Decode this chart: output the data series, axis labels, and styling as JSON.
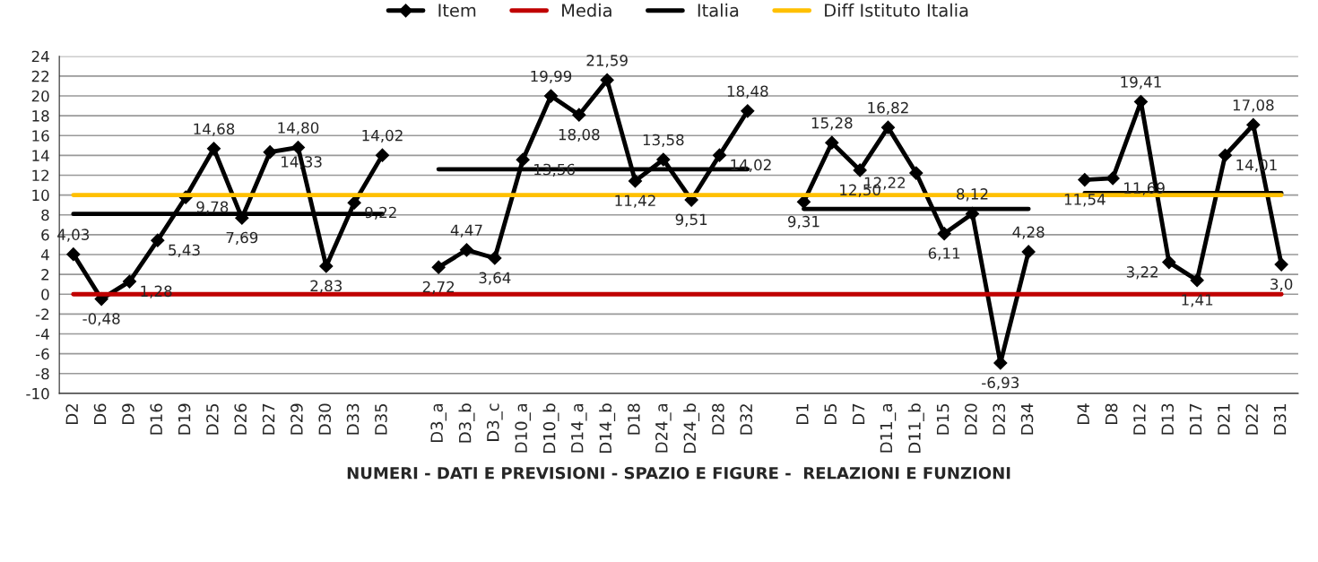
{
  "chart_data": {
    "type": "line",
    "xlabel": "NUMERI - DATI E PREVISIONI - SPAZIO E FIGURE -  RELAZIONI E FUNZIONI",
    "categories": [
      "D2",
      "D6",
      "D9",
      "D16",
      "D19",
      "D25",
      "D26",
      "D27",
      "D29",
      "D30",
      "D33",
      "D35",
      null,
      "D3_a",
      "D3_b",
      "D3_c",
      "D10_a",
      "D10_b",
      "D14_a",
      "D14_b",
      "D18",
      "D24_a",
      "D24_b",
      "D28",
      "D32",
      null,
      "D1",
      "D5",
      "D7",
      "D11_a",
      "D11_b",
      "D15",
      "D20",
      "D23",
      "D34",
      null,
      "D4",
      "D8",
      "D12",
      "D13",
      "D17",
      "D21",
      "D22",
      "D31"
    ],
    "series": [
      {
        "name": "Item",
        "color": "#000000",
        "marker": "diamond",
        "values": [
          4.03,
          -0.48,
          1.28,
          5.43,
          9.78,
          14.68,
          7.69,
          14.33,
          14.8,
          2.83,
          9.22,
          14.02,
          null,
          2.72,
          4.47,
          3.64,
          13.56,
          19.99,
          18.08,
          21.59,
          11.42,
          13.58,
          9.51,
          14.02,
          18.48,
          null,
          9.31,
          15.28,
          12.5,
          16.82,
          12.22,
          6.11,
          8.12,
          -6.93,
          4.28,
          null,
          11.54,
          11.69,
          19.41,
          3.22,
          1.41,
          14.01,
          17.08,
          3.0
        ],
        "value_labels": [
          "4,03",
          "-0,48",
          "1,28",
          "5,43",
          "9,78",
          "14,68",
          "7,69",
          "14,33",
          "14,80",
          "2,83",
          "9,22",
          "14,02",
          null,
          "2,72",
          "4,47",
          "3,64",
          "13,56",
          "19,99",
          "18,08",
          "21,59",
          "11,42",
          "13,58",
          "9,51",
          "14,02",
          "18,48",
          null,
          "9,31",
          "15,28",
          "12,50",
          "16,82",
          "12,22",
          "6,11",
          "8,12",
          "-6,93",
          "4,28",
          null,
          "11,54",
          "11,69",
          "19,41",
          "3,22",
          "1,41",
          "14,01",
          "17,08",
          "3,0"
        ]
      },
      {
        "name": "Media",
        "color": "#c00000",
        "marker": "none",
        "values": [
          0,
          0,
          0,
          0,
          0,
          0,
          0,
          0,
          0,
          0,
          0,
          0,
          0,
          0,
          0,
          0,
          0,
          0,
          0,
          0,
          0,
          0,
          0,
          0,
          0,
          0,
          0,
          0,
          0,
          0,
          0,
          0,
          0,
          0,
          0,
          0,
          0,
          0,
          0,
          0,
          0,
          0,
          0,
          0
        ]
      },
      {
        "name": "Italia",
        "color": "#000000",
        "marker": "none",
        "values": [
          8.1,
          8.1,
          8.1,
          8.1,
          8.1,
          8.1,
          8.1,
          8.1,
          8.1,
          8.1,
          8.1,
          8.1,
          null,
          12.6,
          12.6,
          12.6,
          12.6,
          12.6,
          12.6,
          12.6,
          12.6,
          12.6,
          12.6,
          12.6,
          12.6,
          null,
          8.6,
          8.6,
          8.6,
          8.6,
          8.6,
          8.6,
          8.6,
          8.6,
          8.6,
          null,
          10.2,
          10.2,
          10.2,
          10.2,
          10.2,
          10.2,
          10.2,
          10.2
        ]
      },
      {
        "name": "Diff Istituto Italia",
        "color": "#ffc000",
        "marker": "none",
        "values": [
          10,
          10,
          10,
          10,
          10,
          10,
          10,
          10,
          10,
          10,
          10,
          10,
          10,
          10,
          10,
          10,
          10,
          10,
          10,
          10,
          10,
          10,
          10,
          10,
          10,
          10,
          10,
          10,
          10,
          10,
          10,
          10,
          10,
          10,
          10,
          10,
          10,
          10,
          10,
          10,
          10,
          10,
          10,
          10
        ]
      }
    ],
    "ylim": [
      -10,
      24
    ],
    "yticks": [
      -10,
      -8,
      -6,
      -4,
      -2,
      0,
      2,
      4,
      6,
      8,
      10,
      12,
      14,
      16,
      18,
      20,
      22,
      24
    ],
    "grid": "y",
    "legend": "top",
    "line_style": "solid"
  }
}
